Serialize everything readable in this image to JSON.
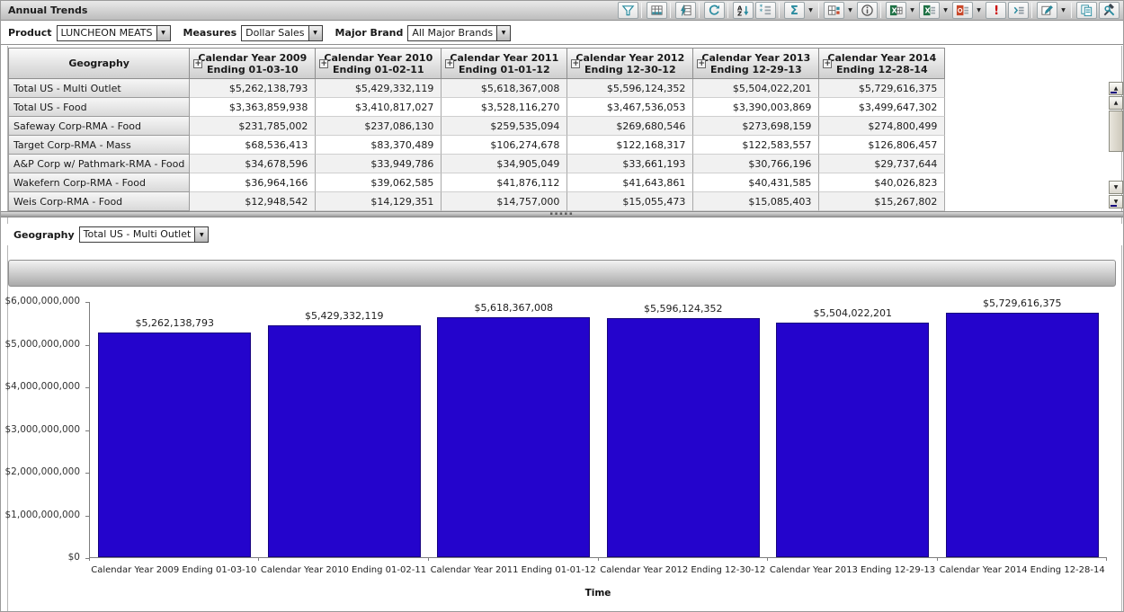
{
  "title": "Annual Trends",
  "glyphs": {
    "dropdown_arrow": "▼",
    "expand": "+",
    "up_arrow": "▲",
    "down_arrow": "▼",
    "grip_dots": "▪▪▪▪▪"
  },
  "toolbar": {
    "buttons": [
      {
        "name": "filter-icon",
        "divider_after": true
      },
      {
        "name": "table-view-icon",
        "divider_after": true
      },
      {
        "name": "quick-calc-icon",
        "divider_after": true
      },
      {
        "name": "refresh-icon",
        "divider_after": true
      },
      {
        "name": "sort-icon"
      },
      {
        "name": "rank-icon",
        "divider_after": true
      },
      {
        "name": "sum-icon",
        "dropdown": true,
        "divider_after": true
      },
      {
        "name": "grid-format-icon",
        "dropdown": true
      },
      {
        "name": "info-icon",
        "divider_after": true
      },
      {
        "name": "export-excel-icon",
        "dropdown": true
      },
      {
        "name": "export-excel-report-icon",
        "dropdown": true
      },
      {
        "name": "export-powerpoint-icon",
        "dropdown": true
      },
      {
        "name": "alert-icon"
      },
      {
        "name": "report-builder-icon",
        "divider_after": true
      },
      {
        "name": "edit-icon",
        "dropdown": true,
        "divider_after": true
      },
      {
        "name": "copy-icon"
      },
      {
        "name": "tools-icon"
      }
    ]
  },
  "filters": [
    {
      "label": "Product",
      "value": "LUNCHEON MEATS"
    },
    {
      "label": "Measures",
      "value": "Dollar Sales"
    },
    {
      "label": "Major Brand",
      "value": "All Major Brands"
    }
  ],
  "table": {
    "geo_header": "Geography",
    "columns": [
      {
        "title": "Calendar Year 2009",
        "subtitle": "Ending 01-03-10"
      },
      {
        "title": "Calendar Year 2010",
        "subtitle": "Ending 01-02-11"
      },
      {
        "title": "Calendar Year 2011",
        "subtitle": "Ending 01-01-12"
      },
      {
        "title": "Calendar Year 2012",
        "subtitle": "Ending 12-30-12"
      },
      {
        "title": "Calendar Year 2013",
        "subtitle": "Ending 12-29-13"
      },
      {
        "title": "Calendar Year 2014",
        "subtitle": "Ending 12-28-14"
      }
    ],
    "rows": [
      {
        "geography": "Total US - Multi Outlet",
        "values": [
          "$5,262,138,793",
          "$5,429,332,119",
          "$5,618,367,008",
          "$5,596,124,352",
          "$5,504,022,201",
          "$5,729,616,375"
        ]
      },
      {
        "geography": "Total US - Food",
        "values": [
          "$3,363,859,938",
          "$3,410,817,027",
          "$3,528,116,270",
          "$3,467,536,053",
          "$3,390,003,869",
          "$3,499,647,302"
        ]
      },
      {
        "geography": "Safeway Corp-RMA - Food",
        "values": [
          "$231,785,002",
          "$237,086,130",
          "$259,535,094",
          "$269,680,546",
          "$273,698,159",
          "$274,800,499"
        ]
      },
      {
        "geography": "Target Corp-RMA - Mass",
        "values": [
          "$68,536,413",
          "$83,370,489",
          "$106,274,678",
          "$122,168,317",
          "$122,583,557",
          "$126,806,457"
        ]
      },
      {
        "geography": "A&P Corp w/ Pathmark-RMA - Food",
        "values": [
          "$34,678,596",
          "$33,949,786",
          "$34,905,049",
          "$33,661,193",
          "$30,766,196",
          "$29,737,644"
        ]
      },
      {
        "geography": "Wakefern Corp-RMA - Food",
        "values": [
          "$36,964,166",
          "$39,062,585",
          "$41,876,112",
          "$41,643,861",
          "$40,431,585",
          "$40,026,823"
        ]
      },
      {
        "geography": "Weis Corp-RMA - Food",
        "values": [
          "$12,948,542",
          "$14,129,351",
          "$14,757,000",
          "$15,055,473",
          "$15,085,403",
          "$15,267,802"
        ]
      }
    ]
  },
  "geography_selector": {
    "label": "Geography",
    "value": "Total US - Multi Outlet"
  },
  "chart_data": {
    "type": "bar",
    "title": "",
    "categories": [
      "Calendar Year 2009 Ending 01-03-10",
      "Calendar Year 2010 Ending 01-02-11",
      "Calendar Year 2011 Ending 01-01-12",
      "Calendar Year 2012 Ending 12-30-12",
      "Calendar Year 2013 Ending 12-29-13",
      "Calendar Year 2014 Ending 12-28-14"
    ],
    "values": [
      5262138793,
      5429332119,
      5618367008,
      5596124352,
      5504022201,
      5729616375
    ],
    "value_labels": [
      "$5,262,138,793",
      "$5,429,332,119",
      "$5,618,367,008",
      "$5,596,124,352",
      "$5,504,022,201",
      "$5,729,616,375"
    ],
    "xlabel": "Time",
    "ylabel": "",
    "ylim": [
      0,
      6000000000
    ],
    "ytick_labels": [
      "$6,000,000,000",
      "$5,000,000,000",
      "$4,000,000,000",
      "$3,000,000,000",
      "$2,000,000,000",
      "$1,000,000,000",
      "$0"
    ],
    "grid": false,
    "legend": "none",
    "bar_color": "#2404cc"
  }
}
